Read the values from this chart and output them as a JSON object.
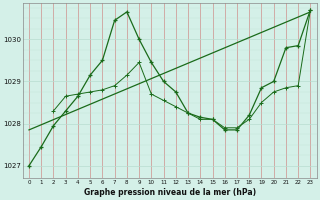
{
  "background_color": "#d4f0e8",
  "grid_color_v": "#ff9999",
  "grid_color_h": "#b8ddd0",
  "line_color": "#1a6b1a",
  "title": "Graphe pression niveau de la mer (hPa)",
  "xlim": [
    -0.5,
    23.5
  ],
  "ylim": [
    1026.7,
    1030.85
  ],
  "yticks": [
    1027,
    1028,
    1029,
    1030
  ],
  "xticks": [
    0,
    1,
    2,
    3,
    4,
    5,
    6,
    7,
    8,
    9,
    10,
    11,
    12,
    13,
    14,
    15,
    16,
    17,
    18,
    19,
    20,
    21,
    22,
    23
  ],
  "line1_x": [
    0,
    1,
    2,
    3,
    4,
    5,
    6,
    7,
    8,
    9,
    10,
    11,
    12,
    13,
    14,
    15,
    16,
    17,
    18,
    19,
    20,
    21,
    22,
    23
  ],
  "line1_y": [
    1027.0,
    1027.45,
    1027.95,
    1028.3,
    1028.65,
    1029.15,
    1029.5,
    1030.45,
    1030.65,
    1030.0,
    1029.45,
    1029.0,
    1028.75,
    1028.25,
    1028.15,
    1028.1,
    1027.85,
    1027.85,
    1028.2,
    1028.85,
    1029.0,
    1029.8,
    1029.85,
    1030.7
  ],
  "line2_x": [
    2,
    3,
    4,
    5,
    6,
    7,
    8,
    9,
    10,
    11,
    12,
    13,
    14,
    15,
    16,
    17,
    18,
    19,
    20,
    21,
    22,
    23
  ],
  "line2_y": [
    1028.3,
    1028.65,
    1028.7,
    1028.75,
    1028.8,
    1028.9,
    1029.15,
    1029.45,
    1028.7,
    1028.55,
    1028.4,
    1028.25,
    1028.1,
    1028.1,
    1027.9,
    1027.9,
    1028.1,
    1028.5,
    1028.75,
    1028.85,
    1028.9,
    1030.7
  ],
  "line3_x": [
    0,
    23
  ],
  "line3_y": [
    1027.85,
    1030.65
  ]
}
